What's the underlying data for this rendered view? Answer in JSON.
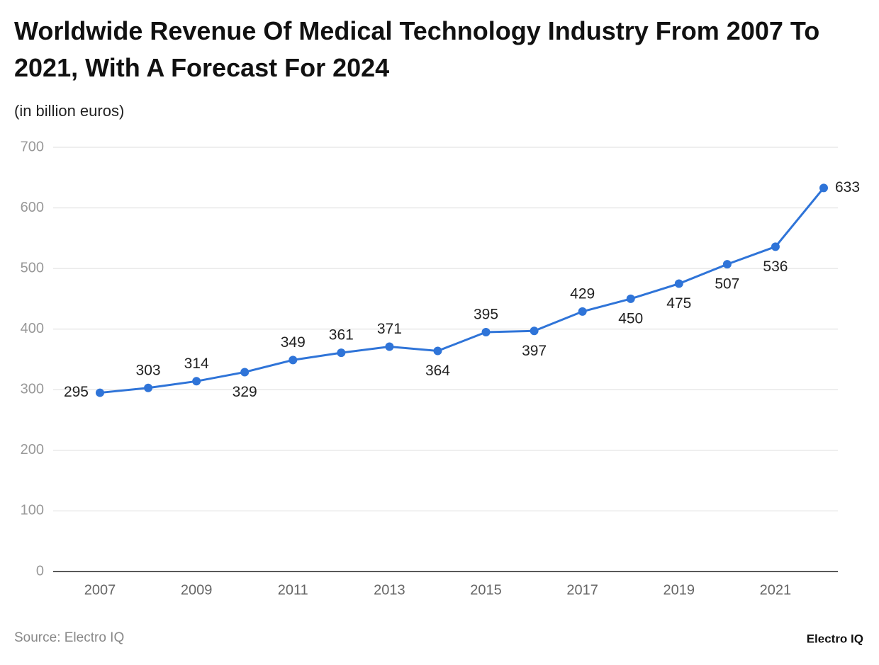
{
  "chart_data": {
    "type": "line",
    "title": "Worldwide Revenue Of Medical Technology Industry From 2007 To 2021, With A Forecast For 2024",
    "subtitle": "(in billion euros)",
    "source": "Source: Electro IQ",
    "brand": "Electro IQ",
    "categories": [
      "2007",
      null,
      "2009",
      null,
      "2011",
      null,
      "2013",
      null,
      "2015",
      null,
      "2017",
      null,
      "2019",
      null,
      "2021",
      null
    ],
    "series": [
      {
        "name": "Revenue",
        "color": "#2f74d8",
        "values": [
          295,
          303,
          314,
          329,
          349,
          361,
          371,
          364,
          395,
          397,
          429,
          450,
          475,
          507,
          536,
          633
        ]
      }
    ],
    "ylim": [
      0,
      700
    ],
    "yticks": [
      0,
      100,
      200,
      300,
      400,
      500,
      600,
      700
    ],
    "grid": true
  }
}
